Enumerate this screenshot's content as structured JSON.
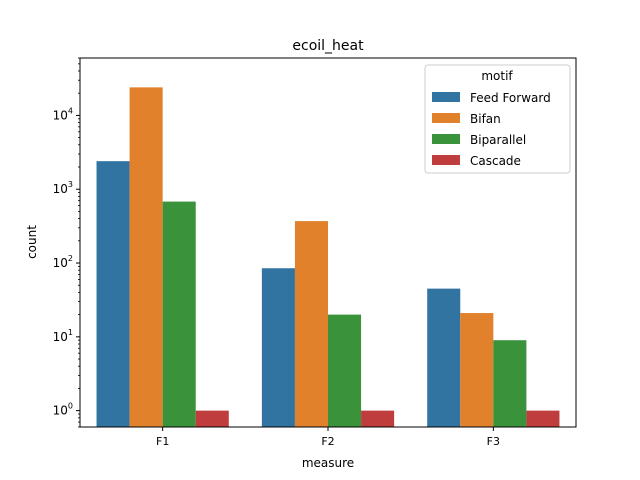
{
  "chart_data": {
    "type": "bar",
    "title": "ecoil_heat",
    "xlabel": "measure",
    "ylabel": "count",
    "yscale": "log",
    "ylim": [
      0.6,
      60000
    ],
    "yticks": [
      1,
      10,
      100,
      1000,
      10000
    ],
    "categories": [
      "F1",
      "F2",
      "F3"
    ],
    "legend": {
      "title": "motif",
      "placement": "top-right"
    },
    "series": [
      {
        "name": "Feed Forward",
        "color": "#3274a1",
        "values": [
          2400,
          85,
          45
        ]
      },
      {
        "name": "Bifan",
        "color": "#e1812c",
        "values": [
          24000,
          370,
          21
        ]
      },
      {
        "name": "Biparallel",
        "color": "#3a923a",
        "values": [
          680,
          20,
          9
        ]
      },
      {
        "name": "Cascade",
        "color": "#c03d3e",
        "values": [
          1,
          1,
          1
        ]
      }
    ],
    "grid": false
  }
}
